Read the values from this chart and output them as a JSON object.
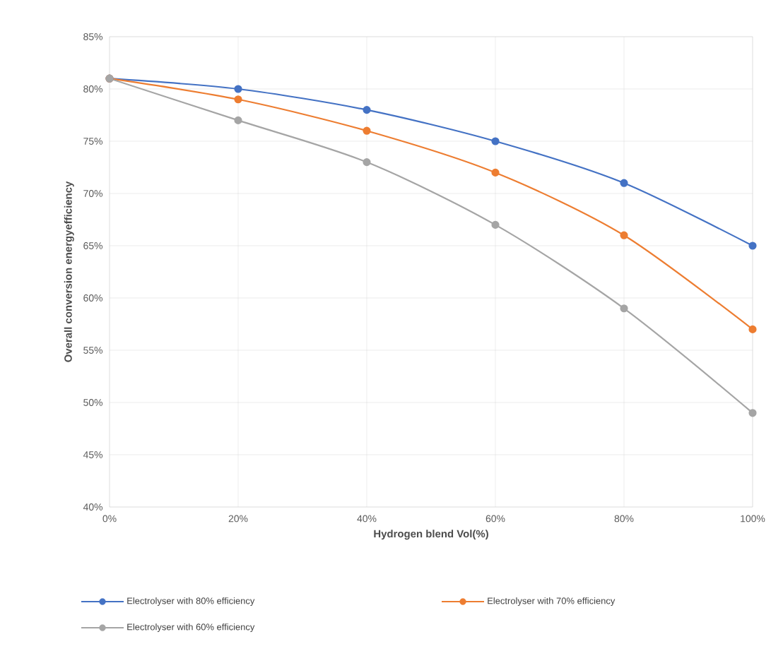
{
  "chart_data": {
    "type": "line",
    "xlabel": "Hydrogen blend Vol(%)",
    "ylabel": "Overall conversion energyefficiency",
    "x": [
      0,
      20,
      40,
      60,
      80,
      100
    ],
    "series": [
      {
        "name": "Electrolyser with 80% efficiency",
        "color": "#4472c4",
        "values": [
          81,
          80,
          78,
          75,
          71,
          65
        ]
      },
      {
        "name": "Electrolyser with 70% efficiency",
        "color": "#ed7d31",
        "values": [
          81,
          79,
          76,
          72,
          66,
          57
        ]
      },
      {
        "name": "Electrolyser with 60% efficiency",
        "color": "#a5a5a5",
        "values": [
          81,
          77,
          73,
          67,
          59,
          49
        ]
      }
    ],
    "xlim": [
      0,
      100
    ],
    "ylim": [
      40,
      85
    ],
    "xticks": [
      {
        "value": 0,
        "label": "0%"
      },
      {
        "value": 20,
        "label": "20%"
      },
      {
        "value": 40,
        "label": "40%"
      },
      {
        "value": 60,
        "label": "60%"
      },
      {
        "value": 80,
        "label": "80%"
      },
      {
        "value": 100,
        "label": "100%"
      }
    ],
    "yticks": [
      {
        "value": 40,
        "label": "40%"
      },
      {
        "value": 45,
        "label": "45%"
      },
      {
        "value": 50,
        "label": "50%"
      },
      {
        "value": 55,
        "label": "55%"
      },
      {
        "value": 60,
        "label": "60%"
      },
      {
        "value": 65,
        "label": "65%"
      },
      {
        "value": 70,
        "label": "70%"
      },
      {
        "value": 75,
        "label": "75%"
      },
      {
        "value": 80,
        "label": "80%"
      },
      {
        "value": 85,
        "label": "85%"
      }
    ],
    "grid": true,
    "legend": "bottom",
    "marker": "circle",
    "line_style": "solid"
  }
}
